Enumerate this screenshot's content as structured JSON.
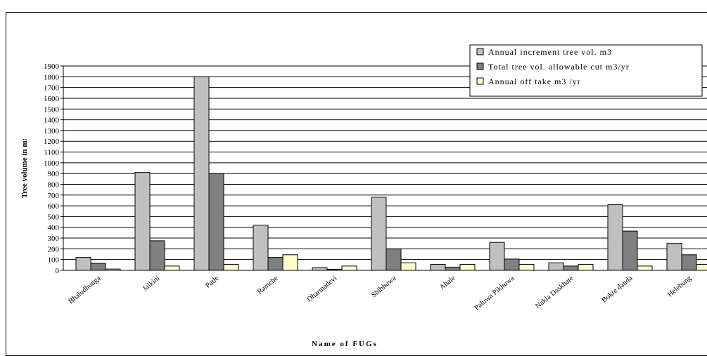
{
  "chart_data": {
    "type": "bar",
    "title": "",
    "xlabel": "Name of FUGs",
    "ylabel": "Tree volume in m3",
    "ylabel_visible": "Tree volume in m:",
    "ylim": [
      0,
      1900
    ],
    "ytick_step": 100,
    "grid": true,
    "legend_position": "top-right",
    "categories": [
      "Bhaludhunga",
      "Jalkini",
      "Patle",
      "Ramche",
      "Dharmadevi",
      "Shibhuwa",
      "Ahale",
      "Paluwa Pikhuwa",
      "Nakla Daskhate",
      "Bokre danda",
      "Helebung"
    ],
    "series": [
      {
        "name": "Annual increment tree vol. m3",
        "color": "#c0c0c0",
        "values": [
          120,
          910,
          1800,
          420,
          25,
          680,
          55,
          260,
          70,
          610,
          250
        ]
      },
      {
        "name": "Total tree vol. allowable cut m3/yr",
        "color": "#808080",
        "values": [
          65,
          275,
          900,
          120,
          10,
          200,
          30,
          105,
          40,
          365,
          145
        ]
      },
      {
        "name": "Annual off take m3 /yr",
        "color": "#ffffcc",
        "values": [
          12,
          40,
          55,
          145,
          40,
          70,
          55,
          55,
          55,
          40,
          55
        ]
      }
    ]
  }
}
